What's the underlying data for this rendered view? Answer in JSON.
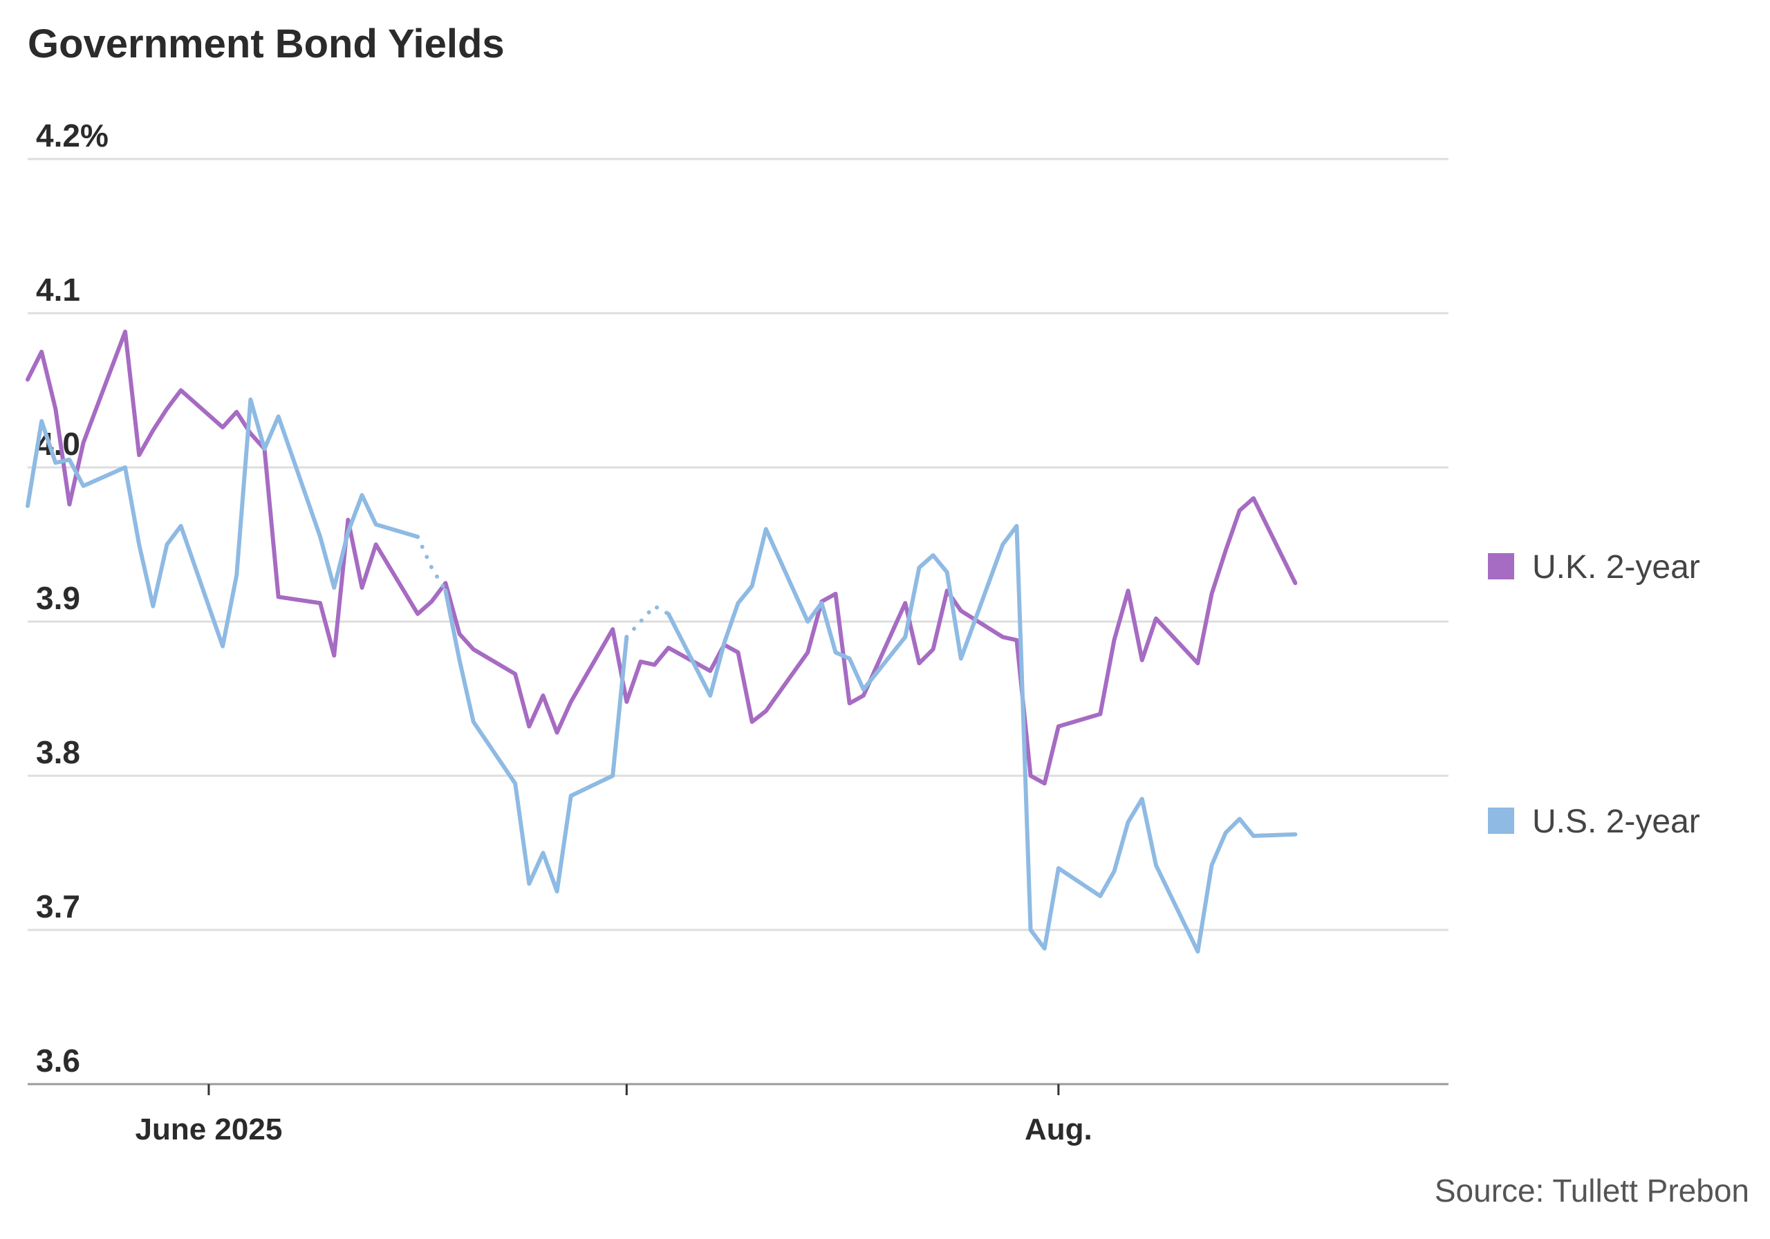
{
  "chart_data": {
    "type": "line",
    "title": "Government Bond Yields",
    "source": "Source: Tullett Prebon",
    "ylim": [
      3.6,
      4.2
    ],
    "yticks": [
      {
        "value": 4.2,
        "label": "4.2%"
      },
      {
        "value": 4.1,
        "label": "4.1"
      },
      {
        "value": 4.0,
        "label": "4.0"
      },
      {
        "value": 3.9,
        "label": "3.9"
      },
      {
        "value": 3.8,
        "label": "3.8"
      },
      {
        "value": 3.7,
        "label": "3.7"
      },
      {
        "value": 3.6,
        "label": "3.6"
      }
    ],
    "xlim": [
      "2025-05-19",
      "2025-08-29"
    ],
    "xticks": [
      {
        "date": "2025-06-01",
        "label": "June 2025"
      },
      {
        "date": "2025-07-01",
        "label": ""
      },
      {
        "date": "2025-08-01",
        "label": "Aug."
      }
    ],
    "grid": true,
    "legend": "right",
    "series": [
      {
        "name": "U.K. 2-year",
        "color": "#a66bc2",
        "points": [
          [
            "2025-05-19",
            4.057
          ],
          [
            "2025-05-20",
            4.075
          ],
          [
            "2025-05-21",
            4.038
          ],
          [
            "2025-05-22",
            3.976
          ],
          [
            "2025-05-23",
            4.016
          ],
          [
            "2025-05-26",
            4.088
          ],
          [
            "2025-05-27",
            4.008
          ],
          [
            "2025-05-28",
            4.024
          ],
          [
            "2025-05-29",
            4.038
          ],
          [
            "2025-05-30",
            4.05
          ],
          [
            "2025-06-02",
            4.026
          ],
          [
            "2025-06-03",
            4.036
          ],
          [
            "2025-06-04",
            4.022
          ],
          [
            "2025-06-05",
            4.012
          ],
          [
            "2025-06-06",
            3.916
          ],
          [
            "2025-06-09",
            3.912
          ],
          [
            "2025-06-10",
            3.878
          ],
          [
            "2025-06-11",
            3.966
          ],
          [
            "2025-06-12",
            3.922
          ],
          [
            "2025-06-13",
            3.95
          ],
          [
            "2025-06-16",
            3.905
          ],
          [
            "2025-06-17",
            3.913
          ],
          [
            "2025-06-18",
            3.925
          ],
          [
            "2025-06-19",
            3.892
          ],
          [
            "2025-06-20",
            3.882
          ],
          [
            "2025-06-23",
            3.866
          ],
          [
            "2025-06-24",
            3.832
          ],
          [
            "2025-06-25",
            3.852
          ],
          [
            "2025-06-26",
            3.828
          ],
          [
            "2025-06-27",
            3.848
          ],
          [
            "2025-06-30",
            3.895
          ],
          [
            "2025-07-01",
            3.848
          ],
          [
            "2025-07-02",
            3.874
          ],
          [
            "2025-07-03",
            3.872
          ],
          [
            "2025-07-04",
            3.883
          ],
          [
            "2025-07-07",
            3.868
          ],
          [
            "2025-07-08",
            3.885
          ],
          [
            "2025-07-09",
            3.88
          ],
          [
            "2025-07-10",
            3.835
          ],
          [
            "2025-07-11",
            3.842
          ],
          [
            "2025-07-14",
            3.88
          ],
          [
            "2025-07-15",
            3.913
          ],
          [
            "2025-07-16",
            3.918
          ],
          [
            "2025-07-17",
            3.847
          ],
          [
            "2025-07-18",
            3.852
          ],
          [
            "2025-07-21",
            3.912
          ],
          [
            "2025-07-22",
            3.873
          ],
          [
            "2025-07-23",
            3.882
          ],
          [
            "2025-07-24",
            3.92
          ],
          [
            "2025-07-25",
            3.907
          ],
          [
            "2025-07-28",
            3.89
          ],
          [
            "2025-07-29",
            3.888
          ],
          [
            "2025-07-30",
            3.8
          ],
          [
            "2025-07-31",
            3.795
          ],
          [
            "2025-08-01",
            3.832
          ],
          [
            "2025-08-04",
            3.84
          ],
          [
            "2025-08-05",
            3.888
          ],
          [
            "2025-08-06",
            3.92
          ],
          [
            "2025-08-07",
            3.875
          ],
          [
            "2025-08-08",
            3.902
          ],
          [
            "2025-08-11",
            3.873
          ],
          [
            "2025-08-12",
            3.918
          ],
          [
            "2025-08-13",
            3.946
          ],
          [
            "2025-08-14",
            3.972
          ],
          [
            "2025-08-15",
            3.98
          ],
          [
            "2025-08-18",
            3.925
          ]
        ]
      },
      {
        "name": "U.S. 2-year",
        "color": "#8ebae3",
        "points": [
          [
            "2025-05-19",
            3.975
          ],
          [
            "2025-05-20",
            4.03
          ],
          [
            "2025-05-21",
            4.003
          ],
          [
            "2025-05-22",
            4.005
          ],
          [
            "2025-05-23",
            3.988
          ],
          [
            "2025-05-26",
            4.0
          ],
          [
            "2025-05-27",
            3.95
          ],
          [
            "2025-05-28",
            3.91
          ],
          [
            "2025-05-29",
            3.95
          ],
          [
            "2025-05-30",
            3.962
          ],
          [
            "2025-06-02",
            3.884
          ],
          [
            "2025-06-03",
            3.93
          ],
          [
            "2025-06-04",
            4.044
          ],
          [
            "2025-06-05",
            4.012
          ],
          [
            "2025-06-06",
            4.033
          ],
          [
            "2025-06-09",
            3.955
          ],
          [
            "2025-06-10",
            3.922
          ],
          [
            "2025-06-11",
            3.958
          ],
          [
            "2025-06-12",
            3.982
          ],
          [
            "2025-06-13",
            3.963
          ],
          [
            "2025-06-16",
            3.955
          ],
          [
            "2025-06-17",
            3.935,
            "dotted"
          ],
          [
            "2025-06-18",
            3.92
          ],
          [
            "2025-06-19",
            3.875
          ],
          [
            "2025-06-20",
            3.835
          ],
          [
            "2025-06-23",
            3.795
          ],
          [
            "2025-06-24",
            3.73
          ],
          [
            "2025-06-25",
            3.75
          ],
          [
            "2025-06-26",
            3.725
          ],
          [
            "2025-06-27",
            3.787
          ],
          [
            "2025-06-30",
            3.8
          ],
          [
            "2025-07-01",
            3.89
          ],
          [
            "2025-07-02",
            3.9,
            "dotted"
          ],
          [
            "2025-07-03",
            3.91,
            "dotted"
          ],
          [
            "2025-07-04",
            3.905
          ],
          [
            "2025-07-07",
            3.852
          ],
          [
            "2025-07-08",
            3.886
          ],
          [
            "2025-07-09",
            3.912
          ],
          [
            "2025-07-10",
            3.923
          ],
          [
            "2025-07-11",
            3.96
          ],
          [
            "2025-07-14",
            3.9
          ],
          [
            "2025-07-15",
            3.912
          ],
          [
            "2025-07-16",
            3.88
          ],
          [
            "2025-07-17",
            3.876
          ],
          [
            "2025-07-18",
            3.856
          ],
          [
            "2025-07-21",
            3.89
          ],
          [
            "2025-07-22",
            3.935
          ],
          [
            "2025-07-23",
            3.943
          ],
          [
            "2025-07-24",
            3.932
          ],
          [
            "2025-07-25",
            3.876
          ],
          [
            "2025-07-28",
            3.95
          ],
          [
            "2025-07-29",
            3.962
          ],
          [
            "2025-07-30",
            3.7
          ],
          [
            "2025-07-31",
            3.688
          ],
          [
            "2025-08-01",
            3.74
          ],
          [
            "2025-08-04",
            3.722
          ],
          [
            "2025-08-05",
            3.738
          ],
          [
            "2025-08-06",
            3.77
          ],
          [
            "2025-08-07",
            3.785
          ],
          [
            "2025-08-08",
            3.742
          ],
          [
            "2025-08-11",
            3.686
          ],
          [
            "2025-08-12",
            3.742
          ],
          [
            "2025-08-13",
            3.763
          ],
          [
            "2025-08-14",
            3.772
          ],
          [
            "2025-08-15",
            3.761
          ],
          [
            "2025-08-18",
            3.762
          ]
        ]
      }
    ]
  }
}
